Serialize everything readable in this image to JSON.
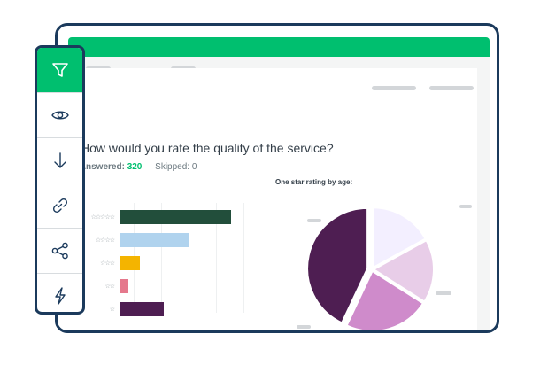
{
  "survey": {
    "question": "How would you rate the quality of the service?",
    "answered_label": "Answered:",
    "answered_value": "320",
    "skipped_label": "Skipped:",
    "skipped_value": "0"
  },
  "chart_data": [
    {
      "type": "bar",
      "orientation": "horizontal",
      "categories": [
        "5 stars",
        "4 stars",
        "3 stars",
        "2 stars",
        "1 star"
      ],
      "values": [
        100,
        62,
        18,
        8,
        40
      ],
      "colors": [
        "#224e3b",
        "#b0d3ee",
        "#f4b400",
        "#e5788c",
        "#4e1e52"
      ],
      "title": "",
      "xlabel": "",
      "ylabel": "",
      "grid": true
    },
    {
      "type": "pie",
      "title": "One star rating by age:",
      "values": [
        17,
        17,
        23,
        43
      ],
      "colors": [
        "#f3efff",
        "#e8cde8",
        "#cf8bcb",
        "#4e1e52"
      ]
    }
  ],
  "colors": {
    "brand_green": "#00bf6f",
    "frame_navy": "#1b3a5c"
  },
  "sidebar": {
    "items": [
      {
        "icon": "filter-icon",
        "active": true
      },
      {
        "icon": "eye-icon",
        "active": false
      },
      {
        "icon": "arrow-down-icon",
        "active": false
      },
      {
        "icon": "link-icon",
        "active": false
      },
      {
        "icon": "share-icon",
        "active": false
      },
      {
        "icon": "lightning-icon",
        "active": false
      }
    ]
  }
}
